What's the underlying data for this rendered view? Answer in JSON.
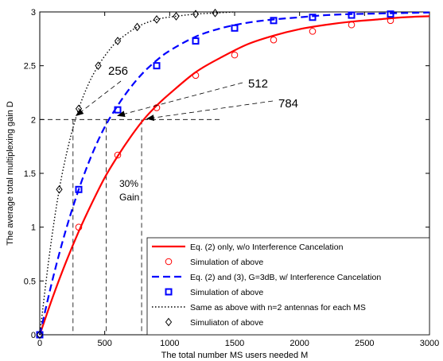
{
  "chart_data": {
    "type": "line",
    "xlabel": "The total number MS users needed M",
    "ylabel": "The average total multiplexing gain D",
    "xlim": [
      0,
      3000
    ],
    "ylim": [
      0,
      3
    ],
    "x_ticks": [
      "0",
      "500",
      "1000",
      "1500",
      "2000",
      "2500",
      "3000"
    ],
    "y_ticks": [
      "0",
      "0.5",
      "1",
      "1.5",
      "2",
      "2.5",
      "3"
    ],
    "grid": false,
    "legend_position": "bottom-right",
    "series": [
      {
        "name": "Eq. (2) only, w/o Interference Cancelation",
        "style": "solid",
        "color": "#ff0000",
        "curve": true,
        "x": [
          0,
          100,
          200,
          300,
          400,
          500,
          600,
          700,
          800,
          900,
          1000,
          1200,
          1400,
          1600,
          1800,
          2000,
          2200,
          2400,
          2600,
          2800,
          3000
        ],
        "y": [
          0,
          0.35,
          0.67,
          0.96,
          1.22,
          1.46,
          1.66,
          1.84,
          2.0,
          2.13,
          2.24,
          2.44,
          2.58,
          2.7,
          2.78,
          2.84,
          2.88,
          2.91,
          2.93,
          2.95,
          2.96
        ]
      },
      {
        "name": "Simulation of above",
        "style": "marker",
        "marker": "circle",
        "color": "#ff0000",
        "x": [
          0,
          300,
          600,
          900,
          1200,
          1500,
          1800,
          2100,
          2400,
          2700
        ],
        "y": [
          0,
          1.0,
          1.67,
          2.11,
          2.41,
          2.6,
          2.74,
          2.82,
          2.88,
          2.92
        ]
      },
      {
        "name": "Eq. (2) and (3), G=3dB, w/ Interference Cancelation",
        "style": "dashed",
        "color": "#0000ff",
        "curve": true,
        "x": [
          0,
          100,
          200,
          300,
          400,
          500,
          600,
          700,
          800,
          900,
          1000,
          1200,
          1400,
          1600,
          1800,
          2000,
          2200,
          2400,
          2600,
          2800,
          3000
        ],
        "y": [
          0,
          0.52,
          0.97,
          1.35,
          1.67,
          1.93,
          2.13,
          2.3,
          2.44,
          2.55,
          2.64,
          2.77,
          2.85,
          2.9,
          2.93,
          2.95,
          2.97,
          2.98,
          2.985,
          2.99,
          2.995
        ]
      },
      {
        "name": "Simulation of above",
        "style": "marker",
        "marker": "square",
        "color": "#0000ff",
        "x": [
          0,
          300,
          600,
          900,
          1200,
          1500,
          1800,
          2100,
          2400,
          2700
        ],
        "y": [
          0,
          1.35,
          2.09,
          2.5,
          2.73,
          2.85,
          2.92,
          2.95,
          2.97,
          2.98
        ]
      },
      {
        "name": "Same as above with n=2 antennas for each MS",
        "style": "dotted",
        "color": "#000000",
        "curve": true,
        "x": [
          0,
          75,
          150,
          225,
          300,
          375,
          450,
          525,
          600,
          750,
          900,
          1050,
          1200,
          1350,
          1500
        ],
        "y": [
          0,
          0.75,
          1.35,
          1.78,
          2.1,
          2.33,
          2.5,
          2.63,
          2.73,
          2.86,
          2.93,
          2.96,
          2.98,
          2.99,
          3.0
        ]
      },
      {
        "name": "Simuliaton of above",
        "style": "marker",
        "marker": "diamond",
        "color": "#000000",
        "x": [
          0,
          150,
          300,
          450,
          600,
          750,
          900,
          1050,
          1200,
          1350
        ],
        "y": [
          0,
          1.35,
          2.1,
          2.5,
          2.73,
          2.86,
          2.93,
          2.96,
          2.98,
          2.99
        ]
      }
    ],
    "annotations": [
      {
        "text": "256",
        "point": [
          256,
          2.0
        ]
      },
      {
        "text": "512",
        "point": [
          512,
          2.0
        ]
      },
      {
        "text": "784",
        "point": [
          784,
          2.0
        ]
      },
      {
        "text": "30%",
        "point": [
          650,
          1.15
        ]
      },
      {
        "text": "Gain",
        "point": [
          650,
          1.15
        ]
      }
    ]
  }
}
